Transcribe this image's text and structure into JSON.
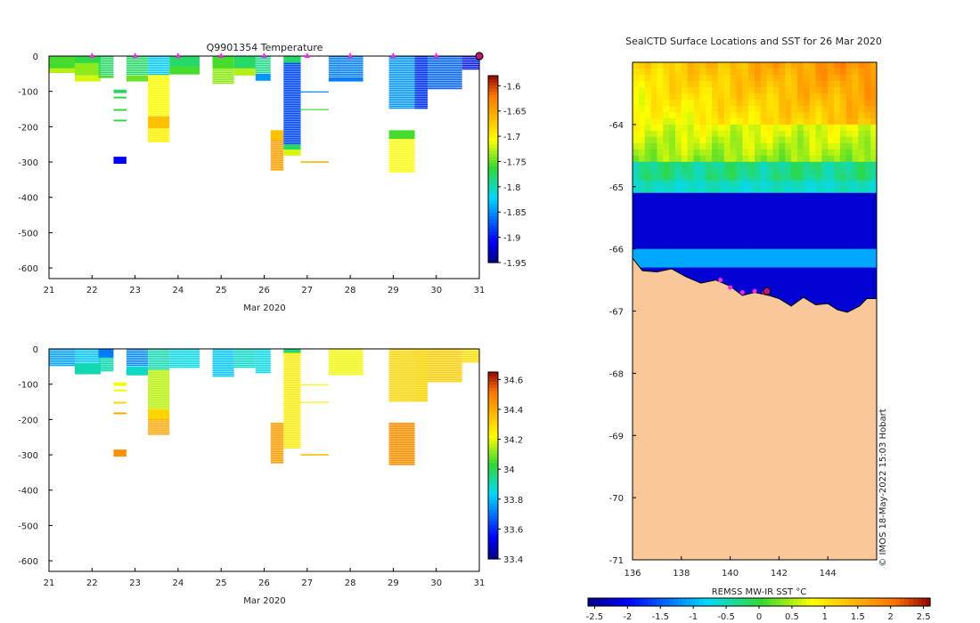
{
  "chart_data": [
    {
      "type": "heatmap",
      "title": "Q9901354  Temperature",
      "xlabel": "Mar 2020",
      "ylabel": "",
      "xlim": [
        21,
        31
      ],
      "ylim": [
        -630,
        0
      ],
      "x_ticks": [
        "21",
        "22",
        "23",
        "24",
        "25",
        "26",
        "27",
        "28",
        "29",
        "30",
        "31"
      ],
      "y_ticks": [
        "0",
        "-100",
        "-200",
        "-300",
        "-400",
        "-500",
        "-600"
      ],
      "colorbar": {
        "range": [
          -1.95,
          -1.58
        ],
        "ticks": [
          "-1.6",
          "-1.65",
          "-1.7",
          "-1.75",
          "-1.8",
          "-1.85",
          "-1.9",
          "-1.95"
        ]
      },
      "surface_markers_day": [
        22,
        23,
        24,
        25,
        26,
        27,
        28,
        29,
        30
      ],
      "current_profile_day": 31,
      "profiles": [
        {
          "x0": 21.0,
          "x1": 21.6,
          "segments": [
            {
              "d0": 0,
              "d1": 35,
              "v": -1.76
            },
            {
              "d0": 35,
              "d1": 48,
              "v": -1.73
            }
          ]
        },
        {
          "x0": 21.6,
          "x1": 22.2,
          "segments": [
            {
              "d0": 0,
              "d1": 20,
              "v": -1.77
            },
            {
              "d0": 20,
              "d1": 55,
              "v": -1.74
            },
            {
              "d0": 55,
              "d1": 72,
              "v": -1.72
            }
          ]
        },
        {
          "x0": 22.15,
          "x1": 22.5,
          "segments": [
            {
              "d0": 0,
              "d1": 55,
              "v": -1.78
            },
            {
              "d0": 55,
              "d1": 62,
              "v": -1.76
            }
          ]
        },
        {
          "x0": 22.5,
          "x1": 22.8,
          "segments": [
            {
              "d0": 95,
              "d1": 105,
              "v": -1.78
            },
            {
              "d0": 115,
              "d1": 120,
              "v": -1.77
            },
            {
              "d0": 150,
              "d1": 155,
              "v": -1.77
            },
            {
              "d0": 180,
              "d1": 185,
              "v": -1.77
            },
            {
              "d0": 285,
              "d1": 305,
              "v": -1.91
            }
          ]
        },
        {
          "x0": 22.8,
          "x1": 23.3,
          "segments": [
            {
              "d0": 0,
              "d1": 55,
              "v": -1.78
            },
            {
              "d0": 55,
              "d1": 72,
              "v": -1.75
            }
          ]
        },
        {
          "x0": 23.3,
          "x1": 23.8,
          "segments": [
            {
              "d0": 0,
              "d1": 55,
              "v": -1.83
            },
            {
              "d0": 55,
              "d1": 170,
              "v": -1.71
            },
            {
              "d0": 170,
              "d1": 205,
              "v": -1.67
            },
            {
              "d0": 205,
              "d1": 245,
              "v": -1.7
            }
          ]
        },
        {
          "x0": 23.8,
          "x1": 24.5,
          "segments": [
            {
              "d0": 0,
              "d1": 30,
              "v": -1.78
            },
            {
              "d0": 30,
              "d1": 52,
              "v": -1.76
            }
          ]
        },
        {
          "x0": 24.8,
          "x1": 25.3,
          "segments": [
            {
              "d0": 0,
              "d1": 35,
              "v": -1.76
            },
            {
              "d0": 35,
              "d1": 78,
              "v": -1.74
            }
          ]
        },
        {
          "x0": 25.3,
          "x1": 25.8,
          "segments": [
            {
              "d0": 0,
              "d1": 35,
              "v": -1.78
            },
            {
              "d0": 35,
              "d1": 55,
              "v": -1.73
            }
          ]
        },
        {
          "x0": 25.8,
          "x1": 26.15,
          "segments": [
            {
              "d0": 0,
              "d1": 50,
              "v": -1.79
            },
            {
              "d0": 50,
              "d1": 70,
              "v": -1.85
            }
          ]
        },
        {
          "x0": 26.15,
          "x1": 26.45,
          "segments": [
            {
              "d0": 210,
              "d1": 240,
              "v": -1.67
            },
            {
              "d0": 240,
              "d1": 322,
              "v": -1.65
            }
          ]
        },
        {
          "x0": 26.45,
          "x1": 26.85,
          "segments": [
            {
              "d0": 0,
              "d1": 20,
              "v": -1.78
            },
            {
              "d0": 20,
              "d1": 250,
              "v": -1.88
            },
            {
              "d0": 250,
              "d1": 265,
              "v": -1.78
            },
            {
              "d0": 265,
              "d1": 282,
              "v": -1.72
            }
          ]
        },
        {
          "x0": 26.85,
          "x1": 27.5,
          "segments": [
            {
              "d0": 100,
              "d1": 103,
              "v": -1.86
            },
            {
              "d0": 150,
              "d1": 153,
              "v": -1.76
            },
            {
              "d0": 298,
              "d1": 302,
              "v": -1.66
            }
          ]
        },
        {
          "x0": 27.5,
          "x1": 28.3,
          "segments": [
            {
              "d0": 0,
              "d1": 60,
              "v": -1.86
            },
            {
              "d0": 60,
              "d1": 72,
              "v": -1.86
            }
          ]
        },
        {
          "x0": 28.9,
          "x1": 29.5,
          "segments": [
            {
              "d0": 0,
              "d1": 150,
              "v": -1.85
            },
            {
              "d0": 210,
              "d1": 235,
              "v": -1.76
            },
            {
              "d0": 235,
              "d1": 330,
              "v": -1.71
            }
          ]
        },
        {
          "x0": 29.5,
          "x1": 29.8,
          "segments": [
            {
              "d0": 0,
              "d1": 150,
              "v": -1.89
            }
          ]
        },
        {
          "x0": 29.8,
          "x1": 30.6,
          "segments": [
            {
              "d0": 0,
              "d1": 95,
              "v": -1.87
            }
          ]
        },
        {
          "x0": 30.6,
          "x1": 31.0,
          "segments": [
            {
              "d0": 0,
              "d1": 40,
              "v": -1.9
            }
          ]
        }
      ]
    },
    {
      "type": "heatmap",
      "title": "",
      "xlabel": "Mar 2020",
      "ylabel": "",
      "xlim": [
        21,
        31
      ],
      "ylim": [
        -630,
        0
      ],
      "x_ticks": [
        "21",
        "22",
        "23",
        "24",
        "25",
        "26",
        "27",
        "28",
        "29",
        "30",
        "31"
      ],
      "y_ticks": [
        "0",
        "-100",
        "-200",
        "-300",
        "-400",
        "-500",
        "-600"
      ],
      "colorbar": {
        "range": [
          33.4,
          34.65
        ],
        "ticks": [
          "34.6",
          "34.4",
          "34.2",
          "34",
          "33.8",
          "33.6",
          "33.4"
        ]
      },
      "profiles": [
        {
          "x0": 21.0,
          "x1": 21.6,
          "segments": [
            {
              "d0": 0,
              "d1": 48,
              "v": 33.75
            }
          ]
        },
        {
          "x0": 21.6,
          "x1": 22.2,
          "segments": [
            {
              "d0": 0,
              "d1": 40,
              "v": 33.8
            },
            {
              "d0": 40,
              "d1": 72,
              "v": 33.9
            }
          ]
        },
        {
          "x0": 22.15,
          "x1": 22.5,
          "segments": [
            {
              "d0": 0,
              "d1": 25,
              "v": 33.7
            },
            {
              "d0": 25,
              "d1": 62,
              "v": 33.9
            }
          ]
        },
        {
          "x0": 22.5,
          "x1": 22.8,
          "segments": [
            {
              "d0": 95,
              "d1": 105,
              "v": 34.2
            },
            {
              "d0": 115,
              "d1": 120,
              "v": 34.2
            },
            {
              "d0": 150,
              "d1": 155,
              "v": 34.3
            },
            {
              "d0": 180,
              "d1": 185,
              "v": 34.4
            },
            {
              "d0": 285,
              "d1": 305,
              "v": 34.45
            }
          ]
        },
        {
          "x0": 22.8,
          "x1": 23.3,
          "segments": [
            {
              "d0": 0,
              "d1": 50,
              "v": 33.72
            },
            {
              "d0": 50,
              "d1": 75,
              "v": 33.88
            }
          ]
        },
        {
          "x0": 23.3,
          "x1": 23.8,
          "segments": [
            {
              "d0": 0,
              "d1": 60,
              "v": 33.9
            },
            {
              "d0": 60,
              "d1": 170,
              "v": 34.15
            },
            {
              "d0": 170,
              "d1": 200,
              "v": 34.3
            },
            {
              "d0": 200,
              "d1": 245,
              "v": 34.4
            }
          ]
        },
        {
          "x0": 23.8,
          "x1": 24.5,
          "segments": [
            {
              "d0": 0,
              "d1": 52,
              "v": 33.85
            }
          ]
        },
        {
          "x0": 24.8,
          "x1": 25.3,
          "segments": [
            {
              "d0": 0,
              "d1": 78,
              "v": 33.8
            }
          ]
        },
        {
          "x0": 25.3,
          "x1": 25.8,
          "segments": [
            {
              "d0": 0,
              "d1": 55,
              "v": 33.88
            }
          ]
        },
        {
          "x0": 25.8,
          "x1": 26.15,
          "segments": [
            {
              "d0": 0,
              "d1": 70,
              "v": 33.85
            }
          ]
        },
        {
          "x0": 26.15,
          "x1": 26.45,
          "segments": [
            {
              "d0": 210,
              "d1": 322,
              "v": 34.42
            }
          ]
        },
        {
          "x0": 26.45,
          "x1": 26.85,
          "segments": [
            {
              "d0": 0,
              "d1": 12,
              "v": 33.95
            },
            {
              "d0": 12,
              "d1": 282,
              "v": 34.25
            }
          ]
        },
        {
          "x0": 26.85,
          "x1": 27.5,
          "segments": [
            {
              "d0": 100,
              "d1": 103,
              "v": 34.2
            },
            {
              "d0": 150,
              "d1": 153,
              "v": 34.25
            },
            {
              "d0": 298,
              "d1": 302,
              "v": 34.35
            }
          ]
        },
        {
          "x0": 27.5,
          "x1": 28.3,
          "segments": [
            {
              "d0": 0,
              "d1": 72,
              "v": 34.2
            }
          ]
        },
        {
          "x0": 28.9,
          "x1": 29.5,
          "segments": [
            {
              "d0": 0,
              "d1": 150,
              "v": 34.3
            },
            {
              "d0": 210,
              "d1": 330,
              "v": 34.45
            }
          ]
        },
        {
          "x0": 29.5,
          "x1": 29.8,
          "segments": [
            {
              "d0": 0,
              "d1": 150,
              "v": 34.3
            }
          ]
        },
        {
          "x0": 29.8,
          "x1": 30.6,
          "segments": [
            {
              "d0": 0,
              "d1": 95,
              "v": 34.32
            }
          ]
        },
        {
          "x0": 30.6,
          "x1": 31.0,
          "segments": [
            {
              "d0": 0,
              "d1": 40,
              "v": 34.28
            }
          ]
        }
      ]
    },
    {
      "type": "heatmap",
      "title": "SealCTD Surface Locations and SST for 26 Mar 2020",
      "xlabel": "",
      "ylabel": "",
      "xlim": [
        136,
        146
      ],
      "ylim": [
        -71,
        -63
      ],
      "x_ticks": [
        "136",
        "138",
        "140",
        "142",
        "144"
      ],
      "y_ticks": [
        "-64",
        "-65",
        "-66",
        "-67",
        "-68",
        "-69",
        "-70",
        "-71"
      ],
      "colorbar": {
        "label": "REMSS MW-IR SST °C",
        "range": [
          -2.6,
          2.6
        ],
        "ticks": [
          "-2.5",
          "-2",
          "-1.5",
          "-1",
          "-0.5",
          "0",
          "0.5",
          "1",
          "1.5",
          "2",
          "2.5"
        ]
      },
      "coastline": [
        [
          136,
          -66.15
        ],
        [
          136.4,
          -66.35
        ],
        [
          137,
          -66.37
        ],
        [
          137.6,
          -66.32
        ],
        [
          138.2,
          -66.45
        ],
        [
          138.8,
          -66.55
        ],
        [
          139.4,
          -66.5
        ],
        [
          140,
          -66.6
        ],
        [
          140.5,
          -66.75
        ],
        [
          141,
          -66.7
        ],
        [
          141.6,
          -66.75
        ],
        [
          142,
          -66.8
        ],
        [
          142.5,
          -66.92
        ],
        [
          143,
          -66.78
        ],
        [
          143.5,
          -66.9
        ],
        [
          144,
          -66.88
        ],
        [
          144.4,
          -66.98
        ],
        [
          144.8,
          -67.02
        ],
        [
          145.3,
          -66.92
        ],
        [
          145.6,
          -66.8
        ],
        [
          146,
          -66.8
        ]
      ],
      "seal_positions": [
        [
          139.6,
          -66.5
        ],
        [
          140.0,
          -66.62
        ],
        [
          140.5,
          -66.7
        ],
        [
          141.0,
          -66.68
        ],
        [
          141.4,
          -66.7
        ]
      ],
      "current_position": [
        141.5,
        -66.68
      ],
      "credit": "© IMOS 18-May-2022 15:03 Hobart"
    }
  ]
}
